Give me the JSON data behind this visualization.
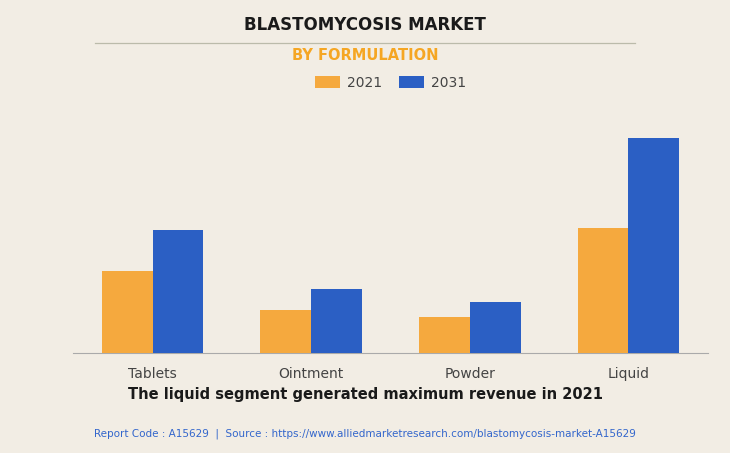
{
  "title": "BLASTOMYCOSIS MARKET",
  "subtitle": "BY FORMULATION",
  "categories": [
    "Tablets",
    "Ointment",
    "Powder",
    "Liquid"
  ],
  "values_2021": [
    38,
    20,
    17,
    58
  ],
  "values_2031": [
    57,
    30,
    24,
    100
  ],
  "color_2021": "#F5A93E",
  "color_2031": "#2B5FC4",
  "legend_labels": [
    "2021",
    "2031"
  ],
  "footnote": "The liquid segment generated maximum revenue in 2021",
  "source_text": "Report Code : A15629  |  Source : https://www.alliedmarketresearch.com/blastomycosis-market-A15629",
  "background_color": "#F2EDE4",
  "subtitle_color": "#F5A623",
  "title_color": "#1a1a1a",
  "footnote_color": "#1a1a1a",
  "source_color": "#3366CC",
  "ylim": [
    0,
    105
  ],
  "bar_width": 0.32,
  "grid_color": "#d0ccc4"
}
